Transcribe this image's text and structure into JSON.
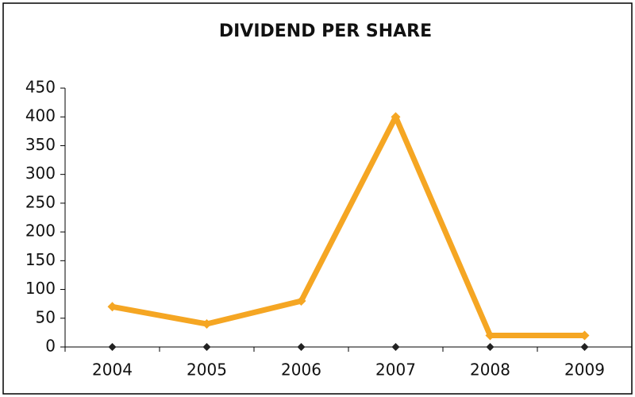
{
  "chart_data": {
    "type": "line",
    "title": "DIVIDEND PER SHARE",
    "categories": [
      "2004",
      "2005",
      "2006",
      "2007",
      "2008",
      "2009"
    ],
    "series": [
      {
        "color": "#f5a623",
        "values": [
          70,
          40,
          80,
          400,
          20,
          20
        ]
      },
      {
        "color": "#222222",
        "values": [
          0,
          0,
          0,
          0,
          0,
          0
        ]
      }
    ],
    "ylim": [
      0,
      450
    ],
    "yticks": [
      0,
      50,
      100,
      150,
      200,
      250,
      300,
      350,
      400,
      450
    ],
    "grid": false
  }
}
